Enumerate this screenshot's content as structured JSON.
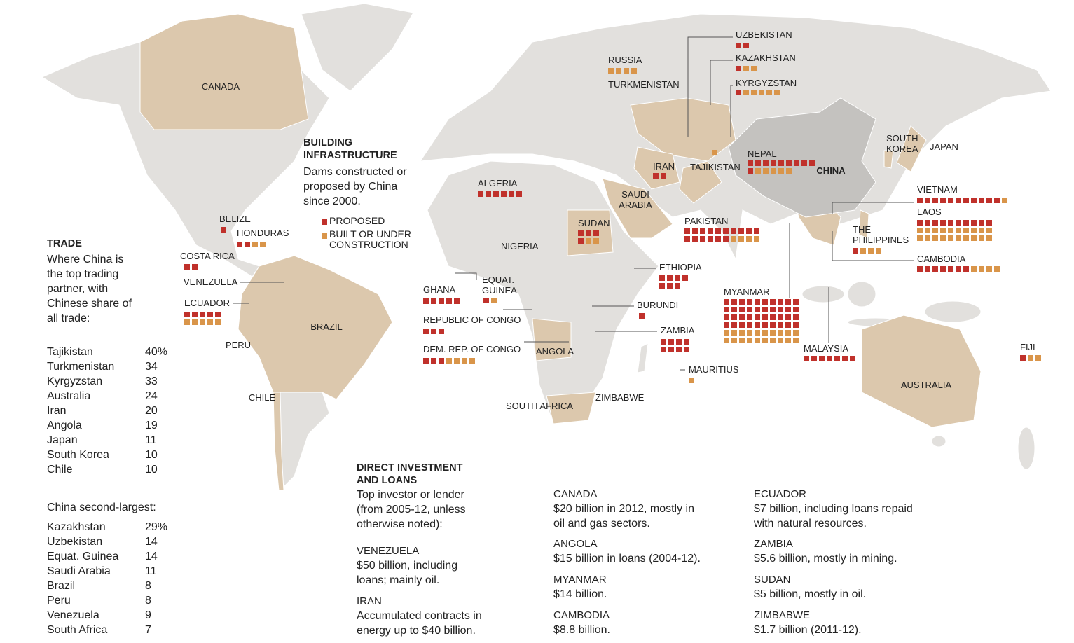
{
  "map_labels": [
    "CANADA",
    "TURKMENISTAN",
    "BRAZIL",
    "PERU",
    "CHILE",
    "VENEZUELA",
    "SAUDI ARABIA",
    "NIGERIA",
    "ANGOLA",
    "SOUTH AFRICA",
    "ZIMBABWE",
    "CHINA",
    "SOUTH KOREA",
    "JAPAN",
    "AUSTRALIA"
  ],
  "infrastructure": {
    "title": "BUILDING INFRASTRUCTURE",
    "description": "Dams constructed or proposed by China since 2000.",
    "legend": {
      "proposed": "PROPOSED",
      "built": "BUILT OR UNDER CONSTRUCTION"
    },
    "colors": {
      "proposed": "#c0312b",
      "built": "#d9954a"
    },
    "dams": [
      {
        "country": "RUSSIA",
        "proposed": 0,
        "built": 4
      },
      {
        "country": "UZBEKISTAN",
        "proposed": 2,
        "built": 0
      },
      {
        "country": "KAZAKHSTAN",
        "proposed": 1,
        "built": 2
      },
      {
        "country": "KYRGYZSTAN",
        "proposed": 1,
        "built": 5
      },
      {
        "country": "TAJIKISTAN",
        "proposed": 0,
        "built": 1
      },
      {
        "country": "IRAN",
        "proposed": 2,
        "built": 0
      },
      {
        "country": "NEPAL",
        "proposed": 10,
        "built": 5
      },
      {
        "country": "PAKISTAN",
        "proposed": 16,
        "built": 4
      },
      {
        "country": "VIETNAM",
        "proposed": 11,
        "built": 1
      },
      {
        "country": "LAOS",
        "proposed": 10,
        "built": 20
      },
      {
        "country": "CAMBODIA",
        "proposed": 7,
        "built": 4
      },
      {
        "country": "THE PHILIPPINES",
        "proposed": 1,
        "built": 3
      },
      {
        "country": "MYANMAR",
        "proposed": 40,
        "built": 20
      },
      {
        "country": "MALAYSIA",
        "proposed": 7,
        "built": 0
      },
      {
        "country": "FIJI",
        "proposed": 1,
        "built": 2
      },
      {
        "country": "ETHIOPIA",
        "proposed": 7,
        "built": 0
      },
      {
        "country": "BURUNDI",
        "proposed": 1,
        "built": 0
      },
      {
        "country": "ZAMBIA",
        "proposed": 8,
        "built": 0
      },
      {
        "country": "MAURITIUS",
        "proposed": 0,
        "built": 1
      },
      {
        "country": "SUDAN",
        "proposed": 4,
        "built": 2
      },
      {
        "country": "ALGERIA",
        "proposed": 6,
        "built": 0
      },
      {
        "country": "GHANA",
        "proposed": 5,
        "built": 0
      },
      {
        "country": "EQUAT. GUINEA",
        "proposed": 1,
        "built": 1
      },
      {
        "country": "REPUBLIC OF CONGO",
        "proposed": 3,
        "built": 0
      },
      {
        "country": "DEM. REP. OF CONGO",
        "proposed": 3,
        "built": 4
      },
      {
        "country": "BELIZE",
        "proposed": 1,
        "built": 0
      },
      {
        "country": "HONDURAS",
        "proposed": 2,
        "built": 2
      },
      {
        "country": "COSTA RICA",
        "proposed": 2,
        "built": 0
      },
      {
        "country": "ECUADOR",
        "proposed": 5,
        "built": 5
      }
    ]
  },
  "trade": {
    "title": "TRADE",
    "description": "Where China is the top trading partner, with Chinese share of all trade:",
    "top_partner": [
      [
        "Tajikistan",
        "40%"
      ],
      [
        "Turkmenistan",
        "34"
      ],
      [
        "Kyrgyzstan",
        "33"
      ],
      [
        "Australia",
        "24"
      ],
      [
        "Iran",
        "20"
      ],
      [
        "Angola",
        "19"
      ],
      [
        "Japan",
        "11"
      ],
      [
        "South Korea",
        "10"
      ],
      [
        "Chile",
        "10"
      ]
    ],
    "second_title": "China second-largest:",
    "second_largest": [
      [
        "Kazakhstan",
        "29%"
      ],
      [
        "Uzbekistan",
        "14"
      ],
      [
        "Equat. Guinea",
        "14"
      ],
      [
        "Saudi Arabia",
        "11"
      ],
      [
        "Brazil",
        "8"
      ],
      [
        "Peru",
        "8"
      ],
      [
        "Venezuela",
        "9"
      ],
      [
        "South Africa",
        "7"
      ]
    ]
  },
  "investment": {
    "title": "DIRECT INVESTMENT AND LOANS",
    "description": "Top investor or lender (from 2005-12, unless otherwise noted):",
    "entries": [
      {
        "country": "VENEZUELA",
        "text": "$50 billion, including loans; mainly oil."
      },
      {
        "country": "IRAN",
        "text": "Accumulated contracts in energy up to $40 billion."
      },
      {
        "country": "CANADA",
        "text": "$20 billion in 2012, mostly in oil and gas sectors."
      },
      {
        "country": "ANGOLA",
        "text": "$15 billion in loans (2004-12)."
      },
      {
        "country": "MYANMAR",
        "text": "$14 billion."
      },
      {
        "country": "CAMBODIA",
        "text": "$8.8 billion."
      },
      {
        "country": "ECUADOR",
        "text": "$7 billion, including loans repaid with natural resources."
      },
      {
        "country": "ZAMBIA",
        "text": "$5.6 billion, mostly in mining."
      },
      {
        "country": "SUDAN",
        "text": "$5 billion, mostly in oil."
      },
      {
        "country": "ZIMBABWE",
        "text": "$1.7 billion (2011-12)."
      }
    ]
  }
}
